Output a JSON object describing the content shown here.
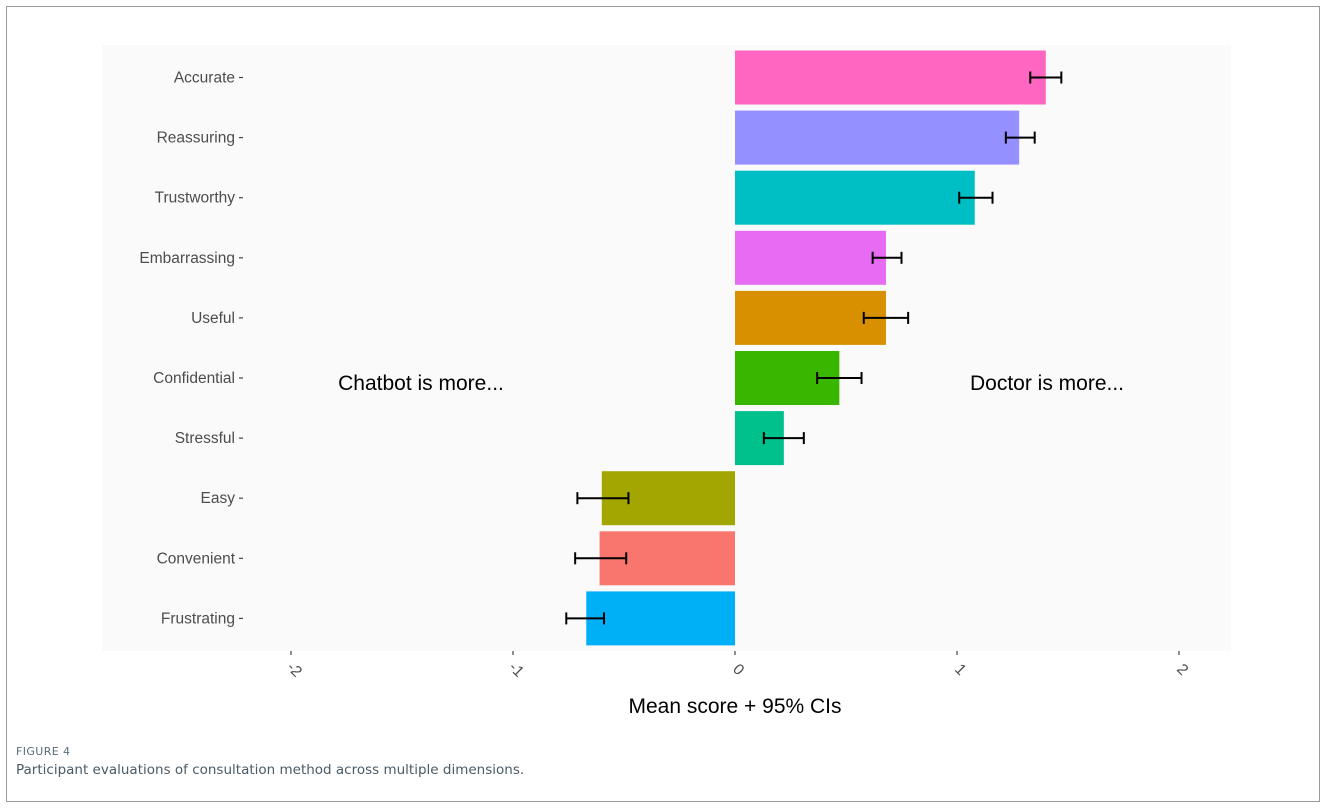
{
  "figure": {
    "label": "FIGURE 4",
    "caption": "Participant evaluations of consultation method across multiple dimensions."
  },
  "chart_data": {
    "type": "bar",
    "orientation": "horizontal",
    "categories": [
      "Accurate",
      "Reassuring",
      "Trustworthy",
      "Embarrassing",
      "Useful",
      "Confidential",
      "Stressful",
      "Easy",
      "Convenient",
      "Frustrating"
    ],
    "values": [
      1.4,
      1.28,
      1.08,
      0.68,
      0.68,
      0.47,
      0.22,
      -0.6,
      -0.61,
      -0.67
    ],
    "ci_lower": [
      1.33,
      1.22,
      1.01,
      0.62,
      0.58,
      0.37,
      0.13,
      -0.71,
      -0.72,
      -0.76
    ],
    "ci_upper": [
      1.47,
      1.35,
      1.16,
      0.75,
      0.78,
      0.57,
      0.31,
      -0.48,
      -0.49,
      -0.59
    ],
    "colors": [
      "#FF66C1",
      "#9590FF",
      "#00BFC4",
      "#E76BF3",
      "#D89000",
      "#39B600",
      "#00C08B",
      "#A3A500",
      "#F8766D",
      "#00B0F6"
    ],
    "xlabel": "Mean score + 95% CIs",
    "ylabel": "",
    "xlim": [
      -2.0,
      2.0
    ],
    "xticks": [
      -2,
      -1,
      0,
      1,
      2
    ],
    "xtick_labels": [
      "-2",
      "-1",
      "0",
      "1",
      "2"
    ],
    "annotations": [
      "Chatbot is more...",
      "Doctor is more..."
    ],
    "grid": false,
    "panel_background": "#FAFAFA"
  }
}
